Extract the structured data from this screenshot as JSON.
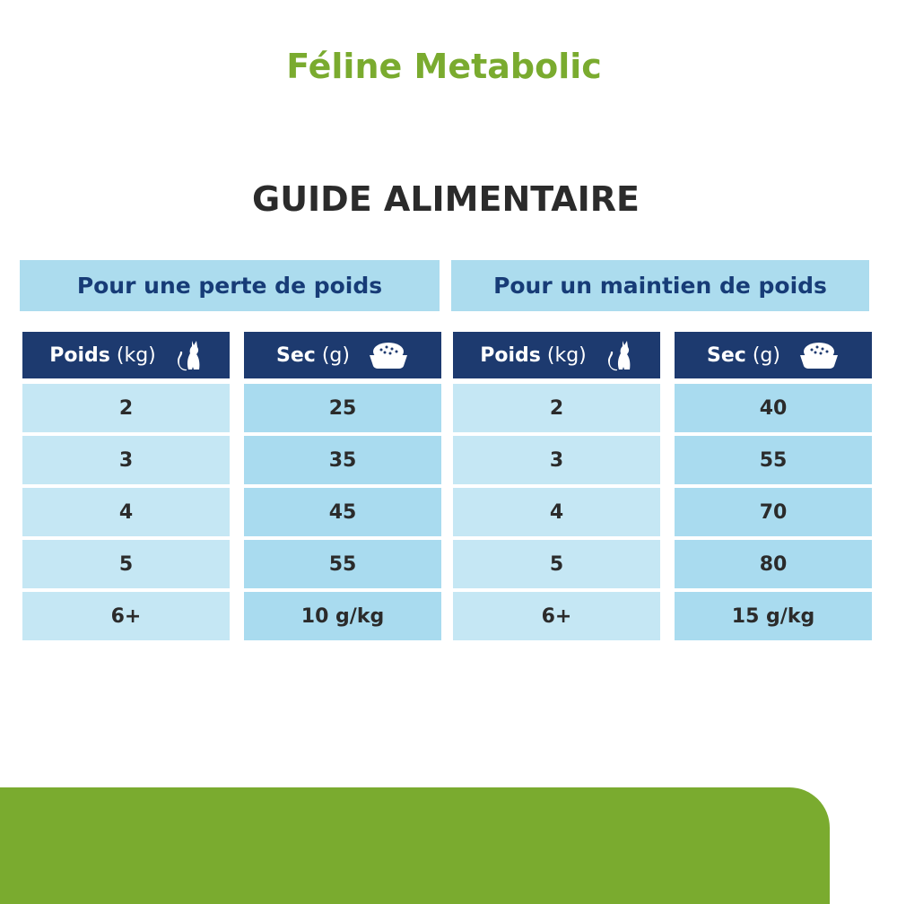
{
  "title": "Féline Metabolic",
  "subtitle": "GUIDE ALIMENTAIRE",
  "colors": {
    "green": "#7aab2f",
    "navy": "#1d3a6f",
    "light_blue": "#acdcee"
  },
  "sections": [
    {
      "label": "Pour une perte de poids",
      "columns": [
        {
          "bold": "Poids",
          "unit": "(kg)",
          "icon": "cat-icon"
        },
        {
          "bold": "Sec",
          "unit": "(g)",
          "icon": "food-bowl-icon"
        }
      ],
      "rows": [
        [
          "2",
          "25"
        ],
        [
          "3",
          "35"
        ],
        [
          "4",
          "45"
        ],
        [
          "5",
          "55"
        ],
        [
          "6+",
          "10 g/kg"
        ]
      ]
    },
    {
      "label": "Pour un maintien de poids",
      "columns": [
        {
          "bold": "Poids",
          "unit": "(kg)",
          "icon": "cat-icon"
        },
        {
          "bold": "Sec",
          "unit": "(g)",
          "icon": "food-bowl-icon"
        }
      ],
      "rows": [
        [
          "2",
          "40"
        ],
        [
          "3",
          "55"
        ],
        [
          "4",
          "70"
        ],
        [
          "5",
          "80"
        ],
        [
          "6+",
          "15 g/kg"
        ]
      ]
    }
  ]
}
